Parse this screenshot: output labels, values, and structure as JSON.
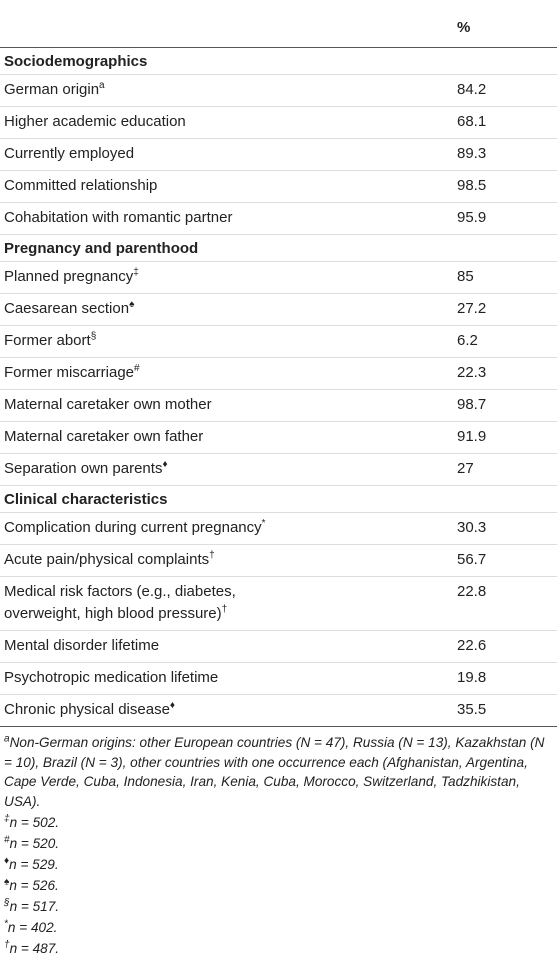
{
  "table": {
    "header": "%",
    "sections": [
      {
        "title": "Sociodemographics",
        "rows": [
          {
            "label": "German origin",
            "note": "a",
            "value": 84.2
          },
          {
            "label": "Higher academic education",
            "value": 68.1
          },
          {
            "label": "Currently employed",
            "value": 89.3
          },
          {
            "label": "Committed relationship",
            "value": 98.5
          },
          {
            "label": "Cohabitation with romantic partner",
            "value": 95.9
          }
        ]
      },
      {
        "title": "Pregnancy and parenthood",
        "rows": [
          {
            "label": "Planned pregnancy",
            "note": "‡",
            "value": 85
          },
          {
            "label": "Caesarean section",
            "note": "♠",
            "value": 27.2
          },
          {
            "label": "Former abort",
            "note": "§",
            "value": 6.2
          },
          {
            "label": "Former miscarriage",
            "note": "#",
            "value": 22.3
          },
          {
            "label": "Maternal caretaker own mother",
            "value": 98.7
          },
          {
            "label": "Maternal caretaker own father",
            "value": 91.9
          },
          {
            "label": "Separation own parents",
            "note": "♦",
            "value": 27
          }
        ]
      },
      {
        "title": "Clinical characteristics",
        "rows": [
          {
            "label": "Complication during current pregnancy",
            "note": "*",
            "value": 30.3
          },
          {
            "label": "Acute pain/physical complaints",
            "note": "†",
            "value": 56.7
          },
          {
            "label": "Medical risk factors (e.g., diabetes, overweight, high blood pressure)",
            "note": "†",
            "value": 22.8
          },
          {
            "label": "Mental disorder lifetime",
            "value": 22.6
          },
          {
            "label": "Psychotropic medication lifetime",
            "value": 19.8
          },
          {
            "label": "Chronic physical disease",
            "note": "♦",
            "value": 35.5
          }
        ]
      }
    ],
    "footnotes": [
      {
        "marker": "a",
        "text": "Non-German origins: other European countries (N = 47), Russia (N = 13), Kazakhstan (N = 10), Brazil (N = 3), other countries with one occurrence each (Afghanistan, Argentina, Cape Verde, Cuba, Indonesia, Iran, Kenia, Cuba, Morocco, Switzerland, Tadzhikistan, USA)."
      },
      {
        "marker": "‡",
        "text": "n = 502."
      },
      {
        "marker": "#",
        "text": "n = 520."
      },
      {
        "marker": "♦",
        "text": "n = 529."
      },
      {
        "marker": "♠",
        "text": "n = 526."
      },
      {
        "marker": "§",
        "text": "n = 517."
      },
      {
        "marker": "*",
        "text": "n = 402."
      },
      {
        "marker": "†",
        "text": "n = 487."
      }
    ]
  }
}
